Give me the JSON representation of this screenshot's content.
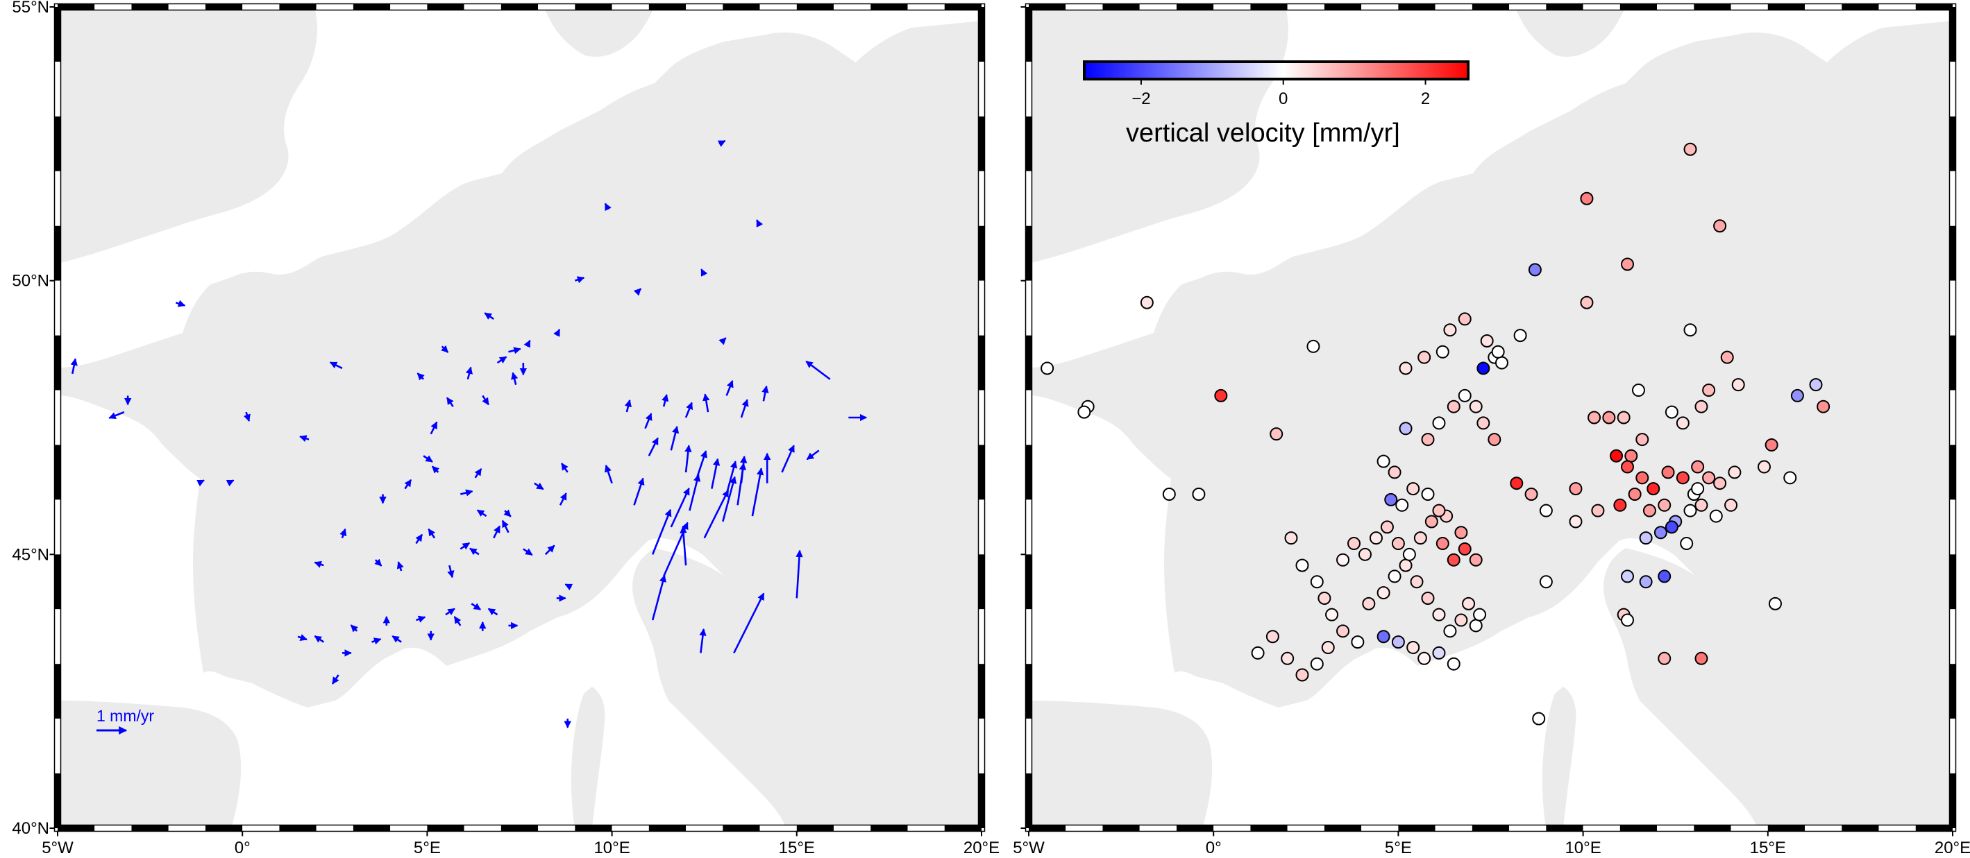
{
  "map": {
    "region": {
      "lon_min": -5,
      "lon_max": 20,
      "lat_min": 40,
      "lat_max": 55
    },
    "lon_ticks": [
      {
        "value": -5,
        "label": "5°W"
      },
      {
        "value": 0,
        "label": "0°"
      },
      {
        "value": 5,
        "label": "5°E"
      },
      {
        "value": 10,
        "label": "10°E"
      },
      {
        "value": 15,
        "label": "15°E"
      },
      {
        "value": 20,
        "label": "20°E"
      }
    ],
    "lat_ticks": [
      {
        "value": 55,
        "label": "55°N"
      },
      {
        "value": 50,
        "label": "50°N"
      },
      {
        "value": 45,
        "label": "45°N"
      },
      {
        "value": 40,
        "label": "40°N"
      }
    ],
    "colors": {
      "land": "#ebebeb",
      "sea": "#ffffff",
      "arrow": "#0000ff",
      "frame": "#000000",
      "cmap_low": "#0000ff",
      "cmap_mid": "#ffffff",
      "cmap_high": "#ff0000"
    }
  },
  "left_panel": {
    "scale_label": "1 mm/yr",
    "scale_value_mm_yr": 1,
    "vectors": [
      [
        -4.6,
        48.3,
        0.1,
        0.5
      ],
      [
        -3.2,
        47.6,
        -0.5,
        -0.2
      ],
      [
        -3.1,
        47.9,
        0.0,
        -0.3
      ],
      [
        -1.8,
        49.6,
        0.3,
        -0.1
      ],
      [
        -1.2,
        46.3,
        0.2,
        0.1
      ],
      [
        -0.4,
        46.3,
        0.2,
        0.1
      ],
      [
        0.1,
        47.6,
        0.1,
        -0.3
      ],
      [
        1.8,
        47.1,
        -0.3,
        0.1
      ],
      [
        2.7,
        48.4,
        -0.4,
        0.2
      ],
      [
        2.7,
        45.3,
        0.1,
        0.3
      ],
      [
        2.2,
        44.8,
        -0.3,
        0.1
      ],
      [
        3.6,
        44.9,
        0.2,
        -0.2
      ],
      [
        4.3,
        44.7,
        -0.1,
        0.3
      ],
      [
        4.7,
        45.2,
        0.2,
        0.3
      ],
      [
        5.2,
        45.3,
        -0.2,
        0.3
      ],
      [
        5.6,
        44.8,
        0.1,
        -0.4
      ],
      [
        5.9,
        45.1,
        0.3,
        0.2
      ],
      [
        6.4,
        45.0,
        -0.3,
        0.2
      ],
      [
        6.8,
        45.3,
        0.2,
        0.4
      ],
      [
        7.2,
        45.4,
        -0.2,
        0.4
      ],
      [
        7.6,
        45.1,
        0.3,
        -0.2
      ],
      [
        4.4,
        46.2,
        0.2,
        0.3
      ],
      [
        5.3,
        46.5,
        -0.2,
        0.2
      ],
      [
        5.9,
        46.1,
        0.4,
        0.1
      ],
      [
        6.3,
        46.4,
        0.2,
        0.3
      ],
      [
        6.6,
        45.7,
        -0.3,
        0.2
      ],
      [
        7.1,
        45.8,
        0.2,
        -0.2
      ],
      [
        4.9,
        46.8,
        0.3,
        -0.2
      ],
      [
        3.8,
        46.1,
        0.0,
        -0.3
      ],
      [
        5.1,
        47.2,
        0.2,
        0.4
      ],
      [
        5.7,
        47.7,
        -0.2,
        0.3
      ],
      [
        6.1,
        48.2,
        0.1,
        0.4
      ],
      [
        6.5,
        47.9,
        0.2,
        -0.3
      ],
      [
        6.9,
        48.5,
        0.3,
        0.2
      ],
      [
        7.4,
        48.1,
        -0.1,
        0.4
      ],
      [
        7.6,
        48.5,
        0.0,
        -0.4
      ],
      [
        7.2,
        48.7,
        0.4,
        0.1
      ],
      [
        7.7,
        48.8,
        0.1,
        0.2
      ],
      [
        6.8,
        49.3,
        -0.3,
        0.2
      ],
      [
        5.4,
        48.8,
        0.2,
        -0.2
      ],
      [
        4.9,
        48.2,
        -0.2,
        0.2
      ],
      [
        8.5,
        49.0,
        0.1,
        0.2
      ],
      [
        7.9,
        46.3,
        0.3,
        -0.2
      ],
      [
        8.6,
        45.9,
        0.2,
        0.4
      ],
      [
        8.8,
        46.5,
        -0.2,
        0.3
      ],
      [
        8.2,
        45.0,
        0.3,
        0.3
      ],
      [
        8.9,
        44.4,
        -0.2,
        0.1
      ],
      [
        8.5,
        44.2,
        0.3,
        0.0
      ],
      [
        8.8,
        42.0,
        0.0,
        -0.3
      ],
      [
        1.5,
        43.5,
        0.3,
        -0.1
      ],
      [
        2.2,
        43.4,
        -0.3,
        0.2
      ],
      [
        2.7,
        43.2,
        0.3,
        0.0
      ],
      [
        3.1,
        43.6,
        -0.2,
        0.2
      ],
      [
        3.5,
        43.4,
        0.3,
        0.1
      ],
      [
        3.9,
        43.7,
        0.0,
        0.3
      ],
      [
        4.3,
        43.4,
        -0.3,
        0.2
      ],
      [
        4.7,
        43.8,
        0.3,
        0.1
      ],
      [
        5.1,
        43.6,
        0.0,
        -0.3
      ],
      [
        5.5,
        43.9,
        0.3,
        0.2
      ],
      [
        5.9,
        43.7,
        -0.2,
        0.3
      ],
      [
        6.2,
        44.1,
        0.3,
        -0.2
      ],
      [
        6.5,
        43.6,
        0.0,
        0.3
      ],
      [
        6.9,
        43.9,
        -0.3,
        0.2
      ],
      [
        7.2,
        43.7,
        0.3,
        0.0
      ],
      [
        2.6,
        42.8,
        -0.2,
        -0.3
      ],
      [
        11.4,
        47.7,
        0.1,
        0.4
      ],
      [
        12.0,
        47.5,
        0.2,
        0.5
      ],
      [
        12.6,
        47.6,
        -0.1,
        0.6
      ],
      [
        13.1,
        47.9,
        0.2,
        0.5
      ],
      [
        13.5,
        47.5,
        0.2,
        0.6
      ],
      [
        14.1,
        47.8,
        0.1,
        0.5
      ],
      [
        10.4,
        47.6,
        0.1,
        0.4
      ],
      [
        10.9,
        47.3,
        0.2,
        0.5
      ],
      [
        11.0,
        46.8,
        0.3,
        0.6
      ],
      [
        11.6,
        46.9,
        0.2,
        0.8
      ],
      [
        12.0,
        46.5,
        0.1,
        0.9
      ],
      [
        12.3,
        46.4,
        0.3,
        0.9
      ],
      [
        12.7,
        46.2,
        0.2,
        1.0
      ],
      [
        13.1,
        46.1,
        0.3,
        1.1
      ],
      [
        13.5,
        46.3,
        0.1,
        0.9
      ],
      [
        11.1,
        45.0,
        0.6,
        1.5
      ],
      [
        11.4,
        44.6,
        0.8,
        1.8
      ],
      [
        11.6,
        45.5,
        0.6,
        1.3
      ],
      [
        12.1,
        45.8,
        0.3,
        1.2
      ],
      [
        12.5,
        45.3,
        0.8,
        1.6
      ],
      [
        13.0,
        45.6,
        0.4,
        1.5
      ],
      [
        13.4,
        45.9,
        0.2,
        1.4
      ],
      [
        13.8,
        45.7,
        0.3,
        1.6
      ],
      [
        14.2,
        46.3,
        0.0,
        1.0
      ],
      [
        14.6,
        46.5,
        0.4,
        0.9
      ],
      [
        15.0,
        44.2,
        0.1,
        1.6
      ],
      [
        12.4,
        43.2,
        0.1,
        0.8
      ],
      [
        13.3,
        43.2,
        1.0,
        2.0
      ],
      [
        15.9,
        48.2,
        -0.8,
        0.6
      ],
      [
        16.4,
        47.5,
        0.6,
        0.0
      ],
      [
        15.6,
        46.9,
        -0.4,
        -0.3
      ],
      [
        11.1,
        43.8,
        0.4,
        1.5
      ],
      [
        12.0,
        44.8,
        -0.1,
        1.3
      ],
      [
        10.6,
        45.9,
        0.3,
        0.9
      ],
      [
        10.0,
        46.3,
        -0.2,
        0.6
      ],
      [
        9.9,
        51.3,
        -0.1,
        0.2
      ],
      [
        12.9,
        52.5,
        0.2,
        0.1
      ],
      [
        14.0,
        51.0,
        -0.1,
        0.2
      ],
      [
        12.5,
        50.1,
        -0.1,
        0.2
      ],
      [
        9.0,
        50.0,
        0.3,
        0.1
      ],
      [
        10.7,
        49.8,
        0.1,
        0.1
      ],
      [
        13.0,
        48.9,
        0.1,
        0.1
      ]
    ]
  },
  "right_panel": {
    "colorbar": {
      "label": "vertical velocity [mm/yr]",
      "range": [
        -2.8,
        2.6
      ],
      "ticks": [
        {
          "value": -2,
          "label": "−2"
        },
        {
          "value": 0,
          "label": "0"
        },
        {
          "value": 2,
          "label": "2"
        }
      ]
    },
    "sites": [
      [
        -4.5,
        48.4,
        0.0
      ],
      [
        -3.4,
        47.7,
        0.0
      ],
      [
        -3.5,
        47.6,
        0.0
      ],
      [
        -1.8,
        49.6,
        0.3
      ],
      [
        -1.2,
        46.1,
        0.0
      ],
      [
        -0.4,
        46.1,
        0.0
      ],
      [
        0.2,
        47.9,
        2.1
      ],
      [
        1.7,
        47.2,
        0.6
      ],
      [
        2.7,
        48.8,
        0.0
      ],
      [
        2.1,
        45.3,
        0.3
      ],
      [
        2.4,
        44.8,
        0.0
      ],
      [
        2.8,
        44.5,
        0.0
      ],
      [
        3.0,
        44.2,
        0.4
      ],
      [
        3.2,
        43.9,
        0.1
      ],
      [
        3.5,
        43.6,
        0.5
      ],
      [
        3.9,
        43.4,
        0.0
      ],
      [
        4.2,
        44.1,
        0.4
      ],
      [
        4.6,
        44.3,
        0.2
      ],
      [
        4.9,
        44.6,
        0.0
      ],
      [
        5.2,
        44.8,
        0.3
      ],
      [
        5.5,
        44.5,
        0.4
      ],
      [
        5.8,
        44.2,
        0.5
      ],
      [
        6.1,
        43.9,
        0.2
      ],
      [
        6.4,
        43.6,
        0.0
      ],
      [
        6.7,
        43.8,
        0.4
      ],
      [
        6.9,
        44.1,
        0.3
      ],
      [
        7.1,
        43.7,
        0.0
      ],
      [
        7.2,
        43.9,
        0.0
      ],
      [
        4.6,
        43.5,
        -1.6
      ],
      [
        5.0,
        43.4,
        -0.7
      ],
      [
        5.4,
        43.3,
        0.3
      ],
      [
        5.7,
        43.1,
        0.1
      ],
      [
        6.1,
        43.2,
        -0.4
      ],
      [
        6.5,
        43.0,
        0.0
      ],
      [
        1.2,
        43.2,
        0.0
      ],
      [
        1.6,
        43.5,
        0.4
      ],
      [
        2.0,
        43.1,
        0.3
      ],
      [
        2.4,
        42.8,
        0.5
      ],
      [
        2.8,
        43.0,
        0.0
      ],
      [
        3.1,
        43.3,
        0.3
      ],
      [
        3.5,
        44.9,
        0.1
      ],
      [
        3.8,
        45.2,
        0.5
      ],
      [
        4.1,
        45.0,
        0.3
      ],
      [
        4.4,
        45.3,
        0.2
      ],
      [
        4.7,
        45.5,
        0.5
      ],
      [
        5.0,
        45.2,
        0.6
      ],
      [
        5.3,
        45.0,
        0.0
      ],
      [
        5.6,
        45.3,
        0.4
      ],
      [
        5.9,
        45.6,
        0.8
      ],
      [
        6.2,
        45.2,
        1.2
      ],
      [
        6.5,
        44.9,
        1.8
      ],
      [
        6.8,
        45.1,
        1.9
      ],
      [
        7.1,
        44.9,
        0.9
      ],
      [
        6.3,
        45.7,
        0.5
      ],
      [
        6.7,
        45.4,
        1.0
      ],
      [
        4.8,
        46.0,
        -1.5
      ],
      [
        5.1,
        45.9,
        0.0
      ],
      [
        5.4,
        46.2,
        0.4
      ],
      [
        5.8,
        46.1,
        0.0
      ],
      [
        6.1,
        45.8,
        0.6
      ],
      [
        4.6,
        46.7,
        0.0
      ],
      [
        4.9,
        46.5,
        0.5
      ],
      [
        5.2,
        47.3,
        -0.7
      ],
      [
        5.8,
        47.1,
        0.7
      ],
      [
        6.1,
        47.4,
        0.0
      ],
      [
        6.5,
        47.7,
        0.6
      ],
      [
        6.8,
        47.9,
        0.0
      ],
      [
        7.1,
        47.7,
        0.3
      ],
      [
        7.3,
        47.4,
        0.5
      ],
      [
        7.6,
        47.1,
        1.0
      ],
      [
        7.3,
        48.4,
        -2.7
      ],
      [
        7.6,
        48.6,
        0.0
      ],
      [
        7.8,
        48.5,
        0.0
      ],
      [
        7.7,
        48.7,
        0.0
      ],
      [
        7.4,
        48.9,
        0.3
      ],
      [
        6.8,
        49.3,
        0.6
      ],
      [
        6.4,
        49.1,
        0.3
      ],
      [
        5.7,
        48.6,
        0.5
      ],
      [
        5.2,
        48.4,
        0.3
      ],
      [
        6.2,
        48.7,
        0.0
      ],
      [
        8.3,
        49.0,
        0.0
      ],
      [
        8.2,
        46.3,
        2.2
      ],
      [
        8.6,
        46.1,
        0.8
      ],
      [
        8.7,
        50.2,
        -1.4
      ],
      [
        9.0,
        44.5,
        0.0
      ],
      [
        8.8,
        42.0,
        0.0
      ],
      [
        9.0,
        45.8,
        0.0
      ],
      [
        10.1,
        51.5,
        1.3
      ],
      [
        10.1,
        49.6,
        0.6
      ],
      [
        11.2,
        50.3,
        1.0
      ],
      [
        12.9,
        52.4,
        0.7
      ],
      [
        13.7,
        51.0,
        0.9
      ],
      [
        12.9,
        49.1,
        0.0
      ],
      [
        13.9,
        48.6,
        0.8
      ],
      [
        13.4,
        48.0,
        0.7
      ],
      [
        14.2,
        48.1,
        0.3
      ],
      [
        13.2,
        47.7,
        0.5
      ],
      [
        12.4,
        47.6,
        0.0
      ],
      [
        11.5,
        48.0,
        0.0
      ],
      [
        12.7,
        47.4,
        0.3
      ],
      [
        10.3,
        47.5,
        0.8
      ],
      [
        10.7,
        47.5,
        1.0
      ],
      [
        11.1,
        47.5,
        0.6
      ],
      [
        11.3,
        46.8,
        1.3
      ],
      [
        11.6,
        47.1,
        0.7
      ],
      [
        10.9,
        46.8,
        2.5
      ],
      [
        11.2,
        46.6,
        1.8
      ],
      [
        11.6,
        46.4,
        1.5
      ],
      [
        11.9,
        46.2,
        2.2
      ],
      [
        12.3,
        46.5,
        1.4
      ],
      [
        12.7,
        46.4,
        1.9
      ],
      [
        13.1,
        46.6,
        1.1
      ],
      [
        13.4,
        46.4,
        0.9
      ],
      [
        13.7,
        46.3,
        0.6
      ],
      [
        14.1,
        46.5,
        0.3
      ],
      [
        11.0,
        45.9,
        2.1
      ],
      [
        11.4,
        46.1,
        1.2
      ],
      [
        11.8,
        45.8,
        1.0
      ],
      [
        12.2,
        45.9,
        0.8
      ],
      [
        12.5,
        45.6,
        -1.0
      ],
      [
        12.9,
        45.8,
        0.0
      ],
      [
        13.2,
        45.9,
        0.5
      ],
      [
        13.6,
        45.7,
        0.0
      ],
      [
        11.7,
        45.3,
        -0.6
      ],
      [
        12.1,
        45.4,
        -1.3
      ],
      [
        12.4,
        45.5,
        -2.0
      ],
      [
        12.8,
        45.2,
        0.0
      ],
      [
        11.2,
        44.6,
        -0.5
      ],
      [
        11.7,
        44.5,
        -0.9
      ],
      [
        12.2,
        44.6,
        -1.9
      ],
      [
        11.1,
        43.9,
        0.5
      ],
      [
        11.2,
        43.8,
        0.0
      ],
      [
        12.2,
        43.1,
        0.8
      ],
      [
        13.2,
        43.1,
        1.4
      ],
      [
        15.2,
        44.1,
        0.0
      ],
      [
        14.9,
        46.6,
        0.3
      ],
      [
        15.1,
        47.0,
        1.3
      ],
      [
        15.6,
        46.4,
        0.0
      ],
      [
        15.8,
        47.9,
        -1.2
      ],
      [
        16.3,
        48.1,
        -0.6
      ],
      [
        16.5,
        47.7,
        1.1
      ],
      [
        14.0,
        45.9,
        0.4
      ],
      [
        13.0,
        46.1,
        0.0
      ],
      [
        9.8,
        46.2,
        1.0
      ],
      [
        10.4,
        45.8,
        0.6
      ],
      [
        13.1,
        46.2,
        0.0
      ],
      [
        9.8,
        45.6,
        0.2
      ]
    ]
  }
}
